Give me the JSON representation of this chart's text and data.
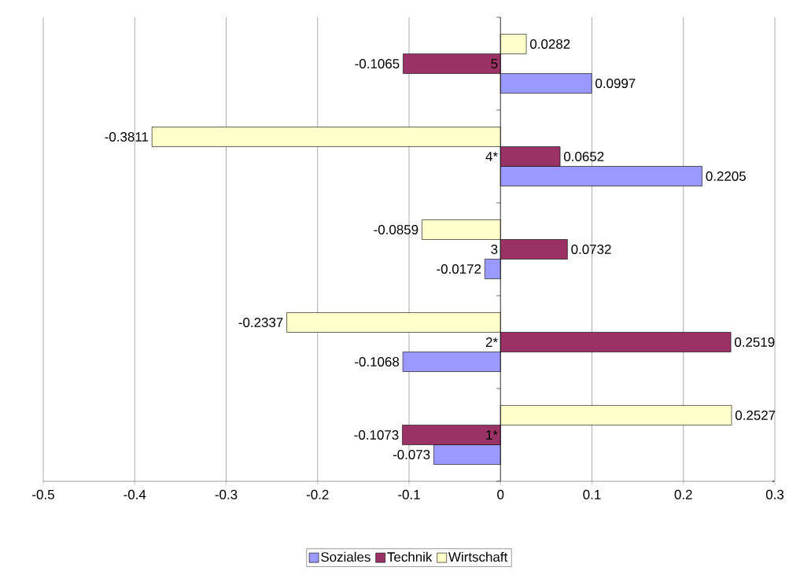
{
  "chart_data": {
    "type": "bar",
    "orientation": "horizontal",
    "categories": [
      "5",
      "4*",
      "3",
      "2*",
      "1*"
    ],
    "series": [
      {
        "name": "Soziales",
        "color": "#9999ff",
        "values": [
          0.0997,
          0.2205,
          -0.0172,
          -0.1068,
          -0.073
        ]
      },
      {
        "name": "Technik",
        "color": "#993366",
        "values": [
          -0.1065,
          0.0652,
          0.0732,
          0.2519,
          -0.1073
        ]
      },
      {
        "name": "Wirtschaft",
        "color": "#ffffcc",
        "values": [
          0.0282,
          -0.3811,
          -0.0859,
          -0.2337,
          0.2527
        ]
      }
    ],
    "xlim": [
      -0.5,
      0.3
    ],
    "xticks": [
      -0.5,
      -0.4,
      -0.3,
      -0.2,
      -0.1,
      0,
      0.1,
      0.2,
      0.3
    ],
    "grid": "x",
    "legend": "bottom",
    "data_labels": true
  }
}
